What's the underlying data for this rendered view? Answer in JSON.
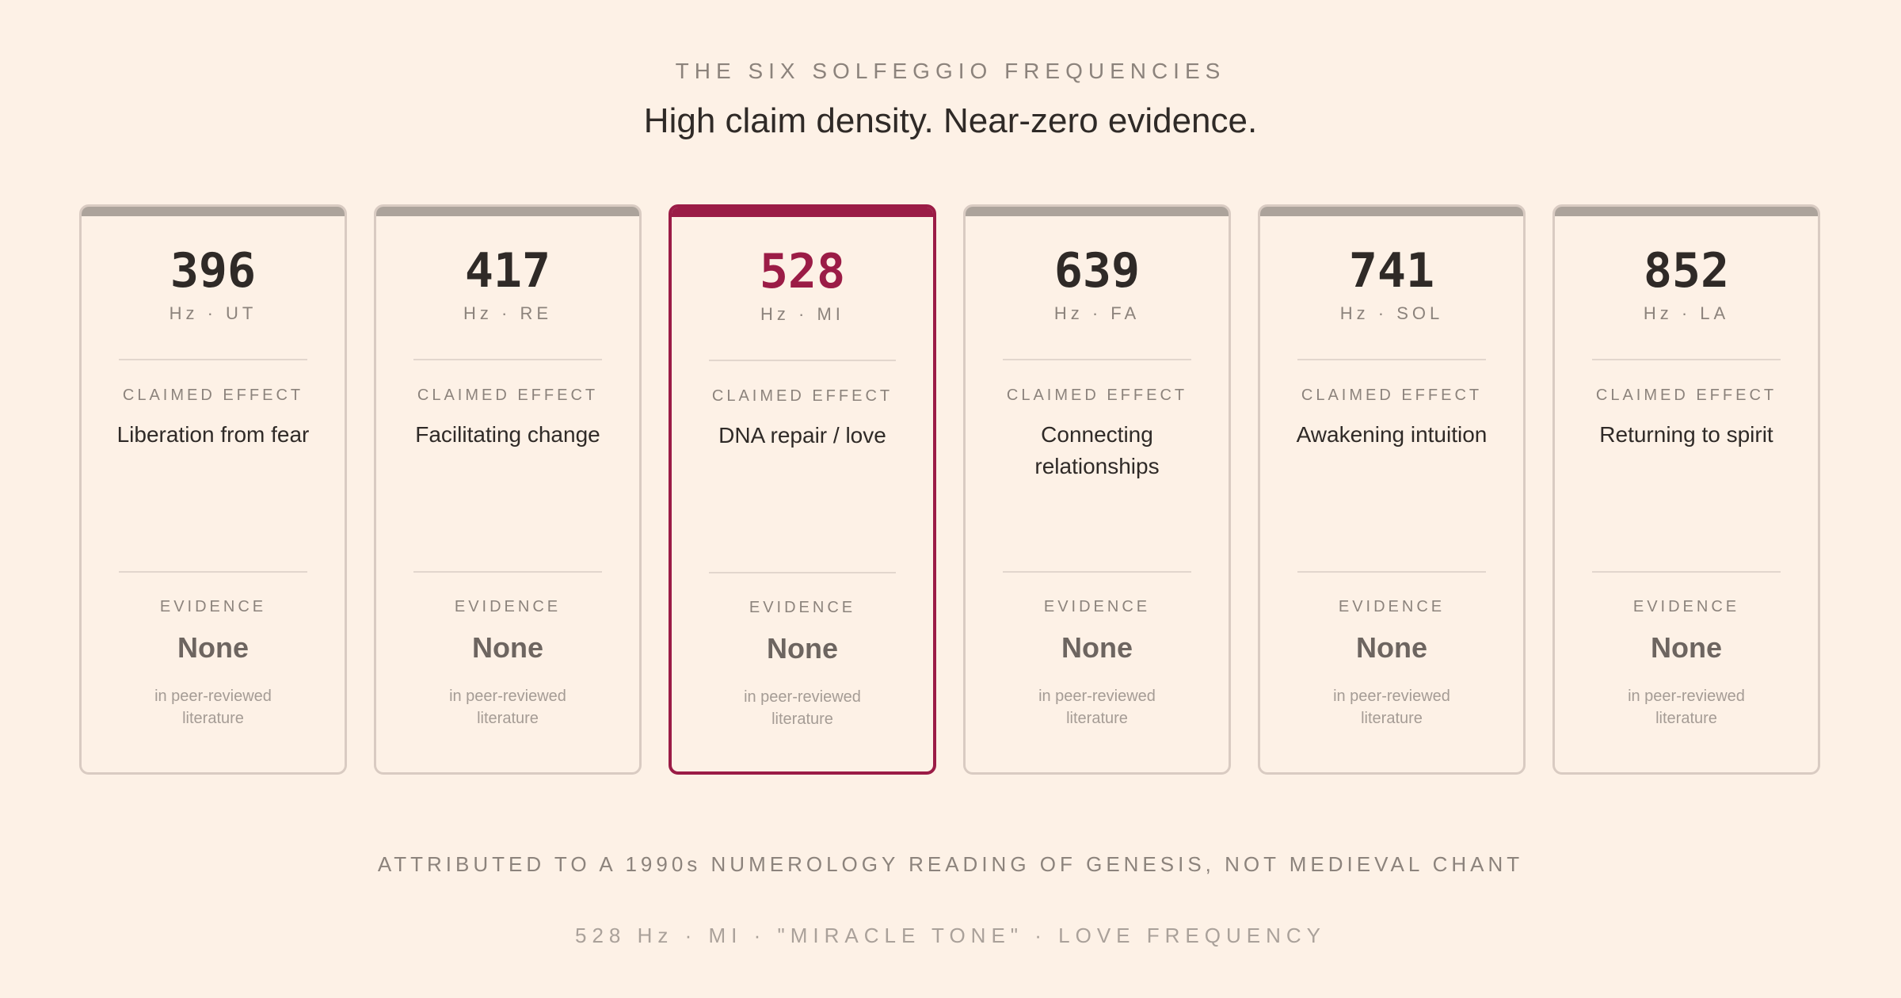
{
  "header": {
    "eyebrow": "THE SIX SOLFEGGIO FREQUENCIES",
    "headline": "High claim density. Near-zero evidence."
  },
  "labels": {
    "claimed_effect": "CLAIMED EFFECT",
    "evidence": "EVIDENCE"
  },
  "cards": [
    {
      "frequency": "396",
      "note": "Hz · UT",
      "claim": "Liberation from fear",
      "evidence": "None",
      "evidence_note": "in peer-reviewed literature"
    },
    {
      "frequency": "417",
      "note": "Hz · RE",
      "claim": "Facilitating change",
      "evidence": "None",
      "evidence_note": "in peer-reviewed literature"
    },
    {
      "frequency": "528",
      "note": "Hz · MI",
      "claim": "DNA repair / love",
      "evidence": "None",
      "evidence_note": "in peer-reviewed literature"
    },
    {
      "frequency": "639",
      "note": "Hz · FA",
      "claim": "Connecting relationships",
      "evidence": "None",
      "evidence_note": "in peer-reviewed literature"
    },
    {
      "frequency": "741",
      "note": "Hz · SOL",
      "claim": "Awakening intuition",
      "evidence": "None",
      "evidence_note": "in peer-reviewed literature"
    },
    {
      "frequency": "852",
      "note": "Hz · LA",
      "claim": "Returning to spirit",
      "evidence": "None",
      "evidence_note": "in peer-reviewed literature"
    }
  ],
  "footer": {
    "attribution": "ATTRIBUTED TO A 1990s NUMEROLOGY READING OF GENESIS, NOT MEDIEVAL CHANT",
    "tagline": "528 Hz · MI · \"MIRACLE TONE\" · LOVE FREQUENCY"
  },
  "colors": {
    "background": "#fdf1e6",
    "accent": "#9b1c46",
    "card_bar": "#aca39b",
    "card_border": "#d9cbc2",
    "text_dark": "#2f2a27",
    "text_muted": "#8c837c"
  }
}
